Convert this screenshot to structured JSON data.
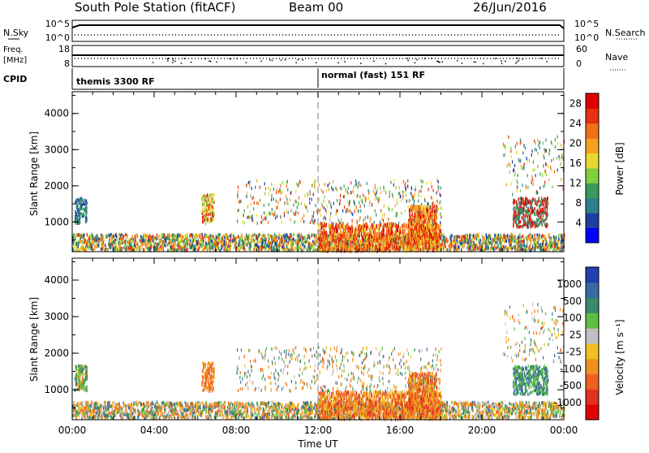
{
  "header": {
    "station": "South Pole Station (fitACF)",
    "beam": "Beam 00",
    "date": "26/Jun/2016"
  },
  "strip_labels": {
    "nsky": "N.Sky",
    "nsearch": "N.Search",
    "freq": "Freq.",
    "freq_unit": "[MHz]",
    "nave": "Nave",
    "cpid": "CPID",
    "noise_top_left": "10^5",
    "noise_bottom_left": "10^0",
    "noise_top_right": "10^5",
    "noise_bottom_right": "10^0",
    "freq_top": "18",
    "freq_bottom": "8",
    "nave_top": "60",
    "nave_bottom": "0"
  },
  "cpid_modes": [
    {
      "label": "themis 3300 RF",
      "start_hour": 0
    },
    {
      "label": "normal (fast) 151 RF",
      "start_hour": 12
    }
  ],
  "axes": {
    "ylabel": "Slant Range [km]",
    "xlabel": "Time UT",
    "y_ticks": [
      "1000",
      "2000",
      "3000",
      "4000"
    ],
    "x_ticks": [
      "00:00",
      "04:00",
      "08:00",
      "12:00",
      "16:00",
      "20:00",
      "00:00"
    ]
  },
  "chart_data": [
    {
      "type": "heatmap",
      "title": "",
      "xlabel": "",
      "ylabel": "Slant Range [km]",
      "xlim": [
        0,
        24
      ],
      "ylim": [
        180,
        4600
      ],
      "colorbar": {
        "label": "Power [dB]",
        "ticks": [
          "4",
          "8",
          "12",
          "16",
          "20",
          "24",
          "28"
        ],
        "range": [
          0,
          30
        ],
        "colors": [
          "#0000ff",
          "#1e3fa0",
          "#2f7f8c",
          "#3a9a5a",
          "#7fcf3f",
          "#e8d830",
          "#f5a020",
          "#f07018",
          "#e83010",
          "#dd0000"
        ]
      },
      "dashed_vline_hour": 12
    },
    {
      "type": "heatmap",
      "title": "",
      "xlabel": "Time UT",
      "ylabel": "Slant Range [km]",
      "xlim": [
        0,
        24
      ],
      "ylim": [
        180,
        4600
      ],
      "colorbar": {
        "label": "Velocity [m s⁻¹]",
        "ticks": [
          "1000",
          "500",
          "100",
          "25",
          "-25",
          "-100",
          "-500",
          "-1000"
        ],
        "colors": [
          "#2040b0",
          "#3a6aa0",
          "#3a8a6a",
          "#5cbf40",
          "#c0c0c0",
          "#f0c020",
          "#f09020",
          "#f06020",
          "#e03020",
          "#e00000"
        ]
      },
      "dashed_vline_hour": 12
    }
  ]
}
